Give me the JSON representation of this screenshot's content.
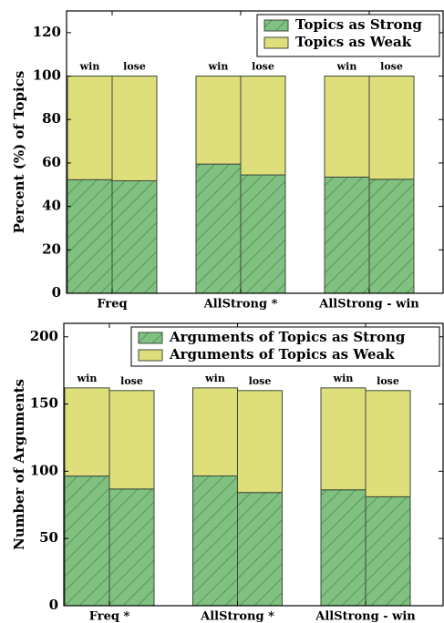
{
  "chart_data": [
    {
      "type": "bar",
      "stacked": true,
      "groups": [
        "Freq",
        "AllStrong *",
        "AllStrong - win"
      ],
      "categories": [
        "win",
        "lose",
        "win",
        "lose",
        "win",
        "lose"
      ],
      "ylabel": "Percent (%) of Topics",
      "series": [
        {
          "name": "Topics as Strong",
          "color": "#80c080",
          "hatch": "/",
          "show_values": true,
          "values": [
            52.3,
            51.8,
            59.5,
            54.5,
            53.5,
            52.5
          ]
        },
        {
          "name": "Topics as Weak",
          "color": "#dede7a",
          "values": [
            47.7,
            48.2,
            40.5,
            45.5,
            46.5,
            47.5
          ]
        }
      ],
      "ylim": [
        0,
        130
      ],
      "yticks": [
        0,
        20,
        40,
        60,
        80,
        100,
        120
      ],
      "legend": "upper right"
    },
    {
      "type": "bar",
      "stacked": true,
      "groups": [
        "Freq *",
        "AllStrong *",
        "AllStrong - win"
      ],
      "categories": [
        "win",
        "lose",
        "win",
        "lose",
        "win",
        "lose"
      ],
      "ylabel": "Number of Arguments",
      "series": [
        {
          "name": "Arguments of Topics as Strong",
          "color": "#80c080",
          "hatch": "/",
          "show_values": true,
          "values": [
            96.4,
            86.8,
            96.5,
            84.2,
            86.2,
            81.0
          ],
          "value_labels": [
            "96.4",
            "86.8",
            "96.5",
            "84.2",
            "86.2",
            "81.0"
          ]
        },
        {
          "name": "Arguments of Topics as Weak",
          "color": "#dede7a",
          "values": [
            65.6,
            73.2,
            65.5,
            75.8,
            75.8,
            79.0
          ]
        }
      ],
      "ylim": [
        0,
        210
      ],
      "yticks": [
        0,
        50,
        100,
        150,
        200
      ],
      "legend": "upper right"
    }
  ]
}
